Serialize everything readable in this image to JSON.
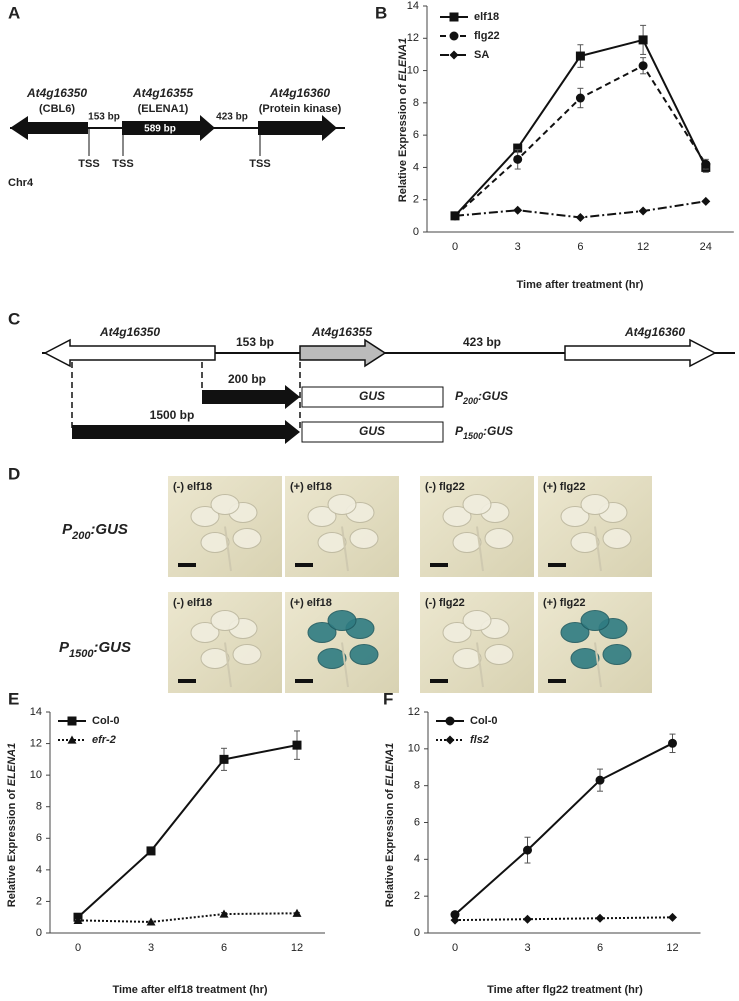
{
  "panels": [
    "A",
    "B",
    "C",
    "D",
    "E",
    "F"
  ],
  "gene_map": {
    "genes": [
      {
        "name": "At4g16350",
        "alias": "(CBL6)"
      },
      {
        "name": "At4g16355",
        "alias": "(ELENA1)"
      },
      {
        "name": "At4g16360",
        "alias": "(Protein kinase)"
      }
    ],
    "gaps": [
      "153 bp",
      "423  bp"
    ],
    "length_label": "589 bp",
    "tss": [
      "TSS",
      "TSS",
      "TSS"
    ],
    "chromosome": "Chr4"
  },
  "construct_map": {
    "genes": [
      "At4g16350",
      "At4g16355",
      "At4g16360"
    ],
    "gaps": [
      "153 bp",
      "423 bp"
    ],
    "constructs": [
      {
        "promoter": "200 bp",
        "reporter": "GUS",
        "label": {
          "prefix": "P",
          "sub": "200",
          "suffix": ":GUS"
        }
      },
      {
        "promoter": "1500 bp",
        "reporter": "GUS",
        "label": {
          "prefix": "P",
          "sub": "1500",
          "suffix": ":GUS"
        }
      }
    ]
  },
  "gus_staining": {
    "rows": [
      {
        "prefix": "P",
        "sub": "200",
        "suffix": ":GUS"
      },
      {
        "prefix": "P",
        "sub": "1500",
        "suffix": ":GUS"
      }
    ],
    "panels": [
      [
        "(-) elf18",
        "(+) elf18",
        "(-) flg22",
        "(+) flg22"
      ],
      [
        "(-) elf18",
        "(+) elf18",
        "(-) flg22",
        "(+) flg22"
      ]
    ]
  },
  "chart_data": [
    {
      "type": "line",
      "xlabel": "Time after treatment (hr)",
      "ylabel": "Relative  Expression of ",
      "ylabel_gene": "ELENA1",
      "categories": [
        0,
        3,
        6,
        12,
        24
      ],
      "ylim": [
        0,
        14
      ],
      "yticks": [
        0,
        2,
        4,
        6,
        8,
        10,
        12,
        14
      ],
      "series": [
        {
          "name": "elf18",
          "color": "#111111",
          "line_style": "solid",
          "marker": "square",
          "values": [
            1,
            5.2,
            10.9,
            11.9,
            4.0
          ],
          "errors": [
            0.1,
            0.2,
            0.7,
            0.9,
            0.3
          ]
        },
        {
          "name": "flg22",
          "color": "#111111",
          "line_style": "dashed",
          "marker": "circle",
          "values": [
            1,
            4.5,
            8.3,
            10.3,
            4.2
          ],
          "errors": [
            0.1,
            0.6,
            0.6,
            0.5,
            0.3
          ]
        },
        {
          "name": "SA",
          "color": "#111111",
          "line_style": "dashdot",
          "marker": "diamond",
          "values": [
            1,
            1.35,
            0.9,
            1.3,
            1.9
          ],
          "errors": [
            0.05,
            0.05,
            0.05,
            0.05,
            0.05
          ]
        }
      ]
    },
    {
      "type": "line",
      "xlabel": "Time after elf18 treatment (hr)",
      "ylabel": "Relative  Expression of ",
      "ylabel_gene": "ELENA1",
      "categories": [
        0,
        3,
        6,
        12
      ],
      "ylim": [
        0,
        14
      ],
      "yticks": [
        0,
        2,
        4,
        6,
        8,
        10,
        12,
        14
      ],
      "series": [
        {
          "name": "Col-0",
          "color": "#111111",
          "line_style": "solid",
          "marker": "square",
          "italic": false,
          "values": [
            1,
            5.2,
            11.0,
            11.9
          ],
          "errors": [
            0.2,
            0.2,
            0.7,
            0.9
          ]
        },
        {
          "name": "efr-2",
          "color": "#111111",
          "line_style": "dotted",
          "marker": "triangle",
          "italic": true,
          "values": [
            0.8,
            0.7,
            1.2,
            1.25
          ],
          "errors": [
            0.05,
            0.05,
            0.1,
            0.05
          ]
        }
      ]
    },
    {
      "type": "line",
      "xlabel": "Time after flg22 treatment (hr)",
      "ylabel": "Relative  Expression of ",
      "ylabel_gene": "ELENA1",
      "categories": [
        0,
        3,
        6,
        12
      ],
      "ylim": [
        0,
        12
      ],
      "yticks": [
        0,
        2,
        4,
        6,
        8,
        10,
        12
      ],
      "series": [
        {
          "name": "Col-0",
          "color": "#111111",
          "line_style": "solid",
          "marker": "circle",
          "italic": false,
          "values": [
            1,
            4.5,
            8.3,
            10.3
          ],
          "errors": [
            0.1,
            0.7,
            0.6,
            0.5
          ]
        },
        {
          "name": "fls2",
          "color": "#111111",
          "line_style": "dotted",
          "marker": "diamond",
          "italic": true,
          "values": [
            0.7,
            0.75,
            0.8,
            0.85
          ],
          "errors": [
            0.03,
            0.03,
            0.03,
            0.03
          ]
        }
      ]
    }
  ]
}
